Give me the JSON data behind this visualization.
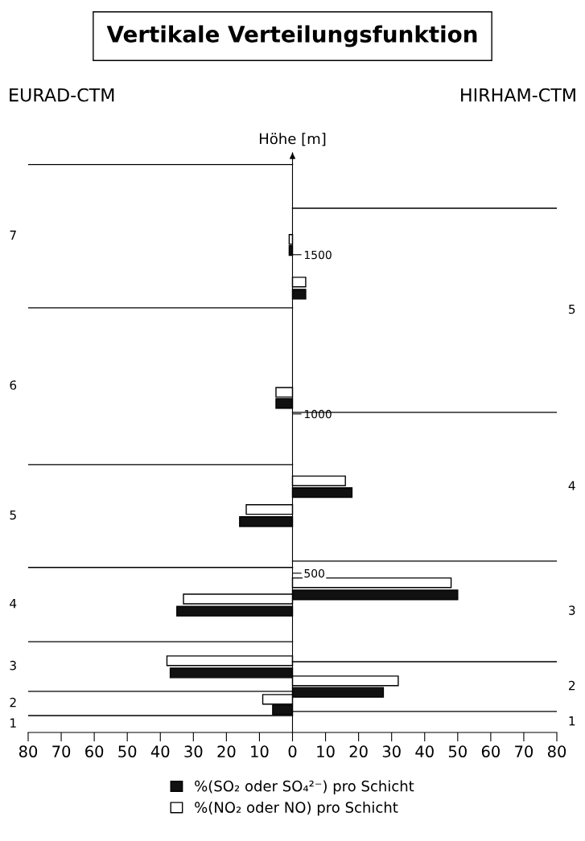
{
  "chart_data": {
    "type": "bar",
    "orientation": "horizontal",
    "title": "Vertikale Verteilungsfunktion",
    "ylabel": "Höhe [m]",
    "xlim": [
      -80,
      80
    ],
    "xticks": [
      {
        "value": -80,
        "label": "80"
      },
      {
        "value": -70,
        "label": "70"
      },
      {
        "value": -60,
        "label": "60"
      },
      {
        "value": -50,
        "label": "50"
      },
      {
        "value": -40,
        "label": "40"
      },
      {
        "value": -30,
        "label": "30"
      },
      {
        "value": -20,
        "label": "20"
      },
      {
        "value": -10,
        "label": "10"
      },
      0,
      10,
      20,
      30,
      40,
      50,
      60,
      70,
      80
    ],
    "ylim": [
      0,
      1820
    ],
    "yticks": [
      500,
      1000,
      1500
    ],
    "grid": false,
    "legend": "bottom",
    "series": [
      {
        "name": "%(SO₂ oder SO₄²⁻) pro Schicht",
        "color": "#111111",
        "x": [
          71,
          126,
          187,
          381,
          432,
          662,
          753,
          1033,
          1376,
          1513
        ],
        "values": [
          -6,
          27.5,
          -37,
          -35,
          50,
          -16,
          18,
          -5,
          4,
          -1
        ]
      },
      {
        "name": "%(NO₂ oder NO) pro Schicht",
        "color": "#ffffff",
        "x": [
          104,
          162,
          225,
          419,
          470,
          700,
          790,
          1068,
          1414,
          1548
        ],
        "values": [
          -9,
          32,
          -38,
          -33,
          48,
          -14,
          16,
          -5,
          4,
          -1
        ]
      },
      {
        "type": "line",
        "color": "#000000",
        "x": [
          53,
          53,
          null,
          129,
          129,
          null,
          285,
          285,
          null,
          518,
          518,
          null,
          841,
          841,
          null,
          1333,
          1333,
          null,
          1783,
          1783
        ],
        "values": [
          -80,
          0,
          null,
          -80,
          0,
          null,
          -80,
          0,
          null,
          -80,
          0,
          null,
          -80,
          0,
          null,
          -80,
          0,
          null,
          -80,
          0
        ]
      },
      {
        "type": "line",
        "color": "#000000",
        "x": [
          66,
          66,
          null,
          222,
          222,
          null,
          538,
          538,
          null,
          1005,
          1005,
          null,
          1646,
          1646
        ],
        "values": [
          0,
          80,
          null,
          0,
          80,
          null,
          0,
          80,
          null,
          0,
          80,
          null,
          0,
          80
        ]
      }
    ],
    "annotations": [
      "EURAD-CTM",
      "HIRHAM-CTM",
      "1",
      "2",
      "3",
      "4",
      "5",
      "6",
      "7",
      "1",
      "2",
      "3",
      "4",
      "5"
    ]
  }
}
